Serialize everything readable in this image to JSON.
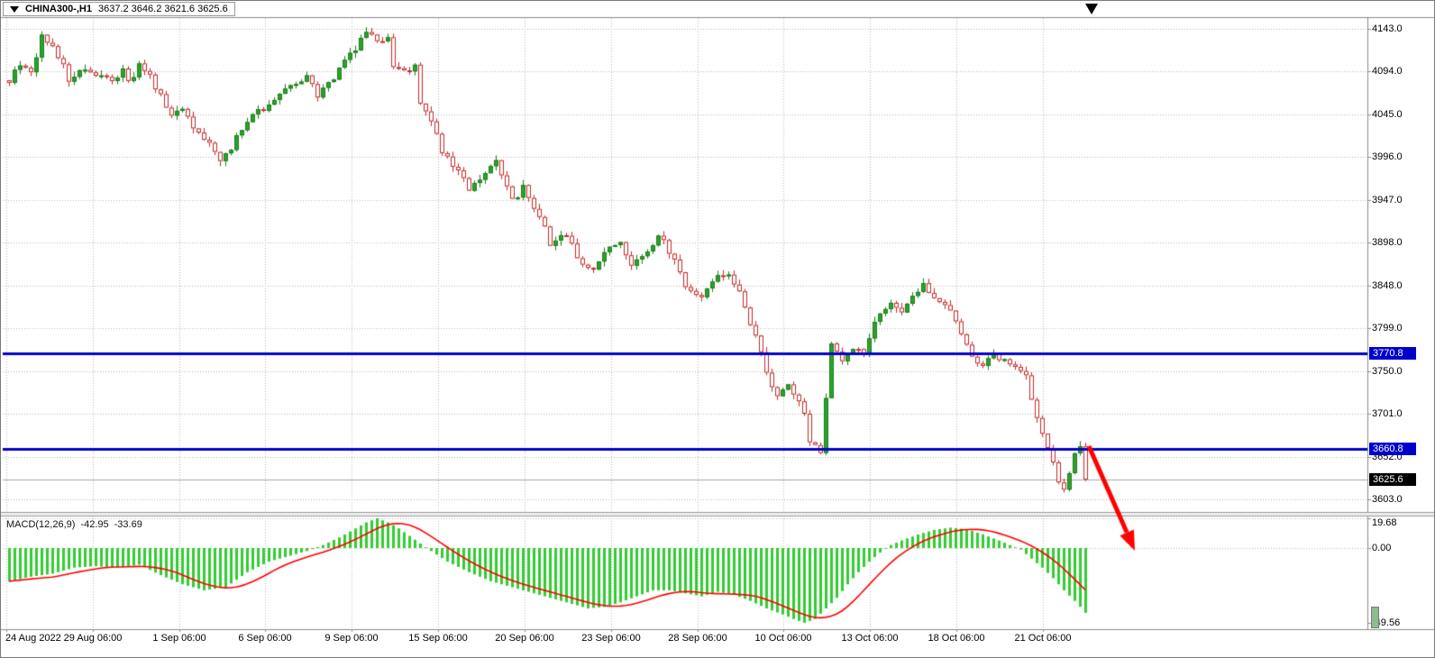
{
  "window": {
    "symbol": "CHINA300-,H1",
    "ohlc_text": "3637.2 3646.2 3621.6 3625.6"
  },
  "price_scale": {
    "labels": [
      "4143.0",
      "4094.0",
      "4045.0",
      "3996.0",
      "3947.0",
      "3898.0",
      "3848.0",
      "3799.0",
      "3750.0",
      "3701.0",
      "3652.0",
      "3603.0"
    ]
  },
  "time_scale": {
    "labels": [
      "24 Aug 2022",
      "29 Aug 06:00",
      "1 Sep 06:00",
      "6 Sep 06:00",
      "9 Sep 06:00",
      "15 Sep 06:00",
      "20 Sep 06:00",
      "23 Sep 06:00",
      "28 Sep 06:00",
      "10 Oct 06:00",
      "13 Oct 06:00",
      "18 Oct 06:00",
      "21 Oct 06:00"
    ]
  },
  "tags": {
    "resistance": "3770.8",
    "support": "3660.8",
    "last": "3625.6"
  },
  "macd_panel": {
    "name": "MACD(12,26,9)",
    "macd_value": "-42.95",
    "signal_value": "-33.69",
    "scale_labels": [
      "19.68",
      "0.00",
      "-49.56"
    ]
  },
  "colors": {
    "bull_fill": "#2ca32c",
    "bull_stroke": "#1b7e1b",
    "bear_fill": "#ffffff",
    "bear_stroke": "#c62828",
    "grid": "#b8b8b8",
    "hline": "#0202cc",
    "tag_blue": "#0000cd",
    "tag_black": "#000000",
    "macd_hist": "#32cd32",
    "macd_signal": "#ff0000",
    "arrow": "#ff0000",
    "bid_line": "#a8a8a8"
  },
  "chart_data": {
    "type": "candlestick",
    "symbol": "CHINA300-",
    "timeframe": "H1",
    "title": "CHINA300-,H1",
    "last_ohlc": {
      "open": 3637.2,
      "high": 3646.2,
      "low": 3621.6,
      "close": 3625.6
    },
    "price_axis": {
      "min": 3603.0,
      "max": 4143.0,
      "gridlines": [
        4143.0,
        4094.0,
        4045.0,
        3996.0,
        3947.0,
        3898.0,
        3848.0,
        3799.0,
        3750.0,
        3701.0,
        3652.0,
        3603.0
      ]
    },
    "horizontal_lines": [
      3770.8,
      3660.8
    ],
    "n_candles": 200,
    "noise_seed": 11,
    "noise_amp": 4,
    "wick_amp": 6,
    "close_anchors": [
      [
        0,
        4085
      ],
      [
        2,
        4100
      ],
      [
        4,
        4092
      ],
      [
        6,
        4135
      ],
      [
        7,
        4128
      ],
      [
        9,
        4112
      ],
      [
        11,
        4085
      ],
      [
        14,
        4096
      ],
      [
        16,
        4088
      ],
      [
        19,
        4082
      ],
      [
        21,
        4096
      ],
      [
        22,
        4080
      ],
      [
        24,
        4100
      ],
      [
        26,
        4088
      ],
      [
        27,
        4074
      ],
      [
        30,
        4045
      ],
      [
        32,
        4052
      ],
      [
        34,
        4030
      ],
      [
        36,
        4015
      ],
      [
        39,
        3995
      ],
      [
        41,
        4002
      ],
      [
        42,
        4020
      ],
      [
        45,
        4045
      ],
      [
        47,
        4052
      ],
      [
        50,
        4065
      ],
      [
        52,
        4076
      ],
      [
        55,
        4090
      ],
      [
        57,
        4064
      ],
      [
        60,
        4086
      ],
      [
        62,
        4106
      ],
      [
        65,
        4130
      ],
      [
        66,
        4140
      ],
      [
        68,
        4126
      ],
      [
        70,
        4133
      ],
      [
        71,
        4102
      ],
      [
        73,
        4096
      ],
      [
        75,
        4100
      ],
      [
        76,
        4060
      ],
      [
        78,
        4040
      ],
      [
        80,
        4000
      ],
      [
        83,
        3980
      ],
      [
        85,
        3958
      ],
      [
        88,
        3976
      ],
      [
        90,
        3990
      ],
      [
        93,
        3944
      ],
      [
        95,
        3960
      ],
      [
        98,
        3930
      ],
      [
        100,
        3895
      ],
      [
        103,
        3906
      ],
      [
        105,
        3880
      ],
      [
        108,
        3868
      ],
      [
        110,
        3890
      ],
      [
        113,
        3900
      ],
      [
        115,
        3870
      ],
      [
        118,
        3886
      ],
      [
        120,
        3906
      ],
      [
        123,
        3880
      ],
      [
        125,
        3850
      ],
      [
        128,
        3834
      ],
      [
        130,
        3856
      ],
      [
        133,
        3860
      ],
      [
        135,
        3840
      ],
      [
        138,
        3790
      ],
      [
        140,
        3750
      ],
      [
        142,
        3720
      ],
      [
        144,
        3736
      ],
      [
        147,
        3704
      ],
      [
        148,
        3670
      ],
      [
        150,
        3660
      ],
      [
        152,
        3780
      ],
      [
        154,
        3760
      ],
      [
        156,
        3776
      ],
      [
        158,
        3768
      ],
      [
        160,
        3810
      ],
      [
        163,
        3826
      ],
      [
        165,
        3815
      ],
      [
        167,
        3836
      ],
      [
        169,
        3850
      ],
      [
        172,
        3830
      ],
      [
        174,
        3816
      ],
      [
        176,
        3795
      ],
      [
        178,
        3764
      ],
      [
        180,
        3754
      ],
      [
        182,
        3772
      ],
      [
        184,
        3760
      ],
      [
        186,
        3756
      ],
      [
        188,
        3744
      ],
      [
        190,
        3694
      ],
      [
        192,
        3660
      ],
      [
        194,
        3624
      ],
      [
        195,
        3612
      ],
      [
        197,
        3656
      ],
      [
        198,
        3660
      ],
      [
        199,
        3625.6
      ]
    ],
    "indicator": {
      "type": "MACD",
      "fast": 12,
      "slow": 26,
      "signal_period": 9,
      "scale": {
        "max": 19.68,
        "zero": 0.0,
        "min": -49.56
      },
      "current": {
        "macd": -42.95,
        "signal": -33.69
      },
      "macd_anchors": [
        [
          0,
          -22
        ],
        [
          4,
          -19
        ],
        [
          8,
          -17
        ],
        [
          12,
          -13
        ],
        [
          16,
          -12
        ],
        [
          20,
          -13
        ],
        [
          24,
          -11
        ],
        [
          28,
          -18
        ],
        [
          32,
          -24
        ],
        [
          36,
          -28
        ],
        [
          40,
          -26
        ],
        [
          44,
          -16
        ],
        [
          48,
          -9
        ],
        [
          52,
          -5
        ],
        [
          55,
          -2
        ],
        [
          58,
          2
        ],
        [
          61,
          7
        ],
        [
          64,
          13
        ],
        [
          66,
          17
        ],
        [
          68,
          19.68
        ],
        [
          70,
          17
        ],
        [
          72,
          13
        ],
        [
          74,
          8
        ],
        [
          76,
          3
        ],
        [
          78,
          -2
        ],
        [
          81,
          -9
        ],
        [
          85,
          -16
        ],
        [
          89,
          -22
        ],
        [
          93,
          -26
        ],
        [
          97,
          -30
        ],
        [
          100,
          -33
        ],
        [
          104,
          -37
        ],
        [
          107,
          -40
        ],
        [
          110,
          -39
        ],
        [
          113,
          -36
        ],
        [
          116,
          -32
        ],
        [
          119,
          -28
        ],
        [
          122,
          -28
        ],
        [
          125,
          -30
        ],
        [
          128,
          -32
        ],
        [
          131,
          -29
        ],
        [
          134,
          -31
        ],
        [
          137,
          -35
        ],
        [
          140,
          -40
        ],
        [
          143,
          -44
        ],
        [
          145,
          -47
        ],
        [
          147,
          -49.56
        ],
        [
          149,
          -47
        ],
        [
          151,
          -40
        ],
        [
          153,
          -33
        ],
        [
          155,
          -24
        ],
        [
          157,
          -16
        ],
        [
          159,
          -9
        ],
        [
          161,
          -3
        ],
        [
          163,
          2
        ],
        [
          165,
          5
        ],
        [
          168,
          9
        ],
        [
          171,
          12
        ],
        [
          174,
          13.5
        ],
        [
          177,
          12.5
        ],
        [
          180,
          9
        ],
        [
          183,
          5
        ],
        [
          185,
          2
        ],
        [
          187,
          -1
        ],
        [
          189,
          -7
        ],
        [
          191,
          -13
        ],
        [
          193,
          -20
        ],
        [
          195,
          -28
        ],
        [
          197,
          -35
        ],
        [
          199,
          -42.95
        ]
      ]
    },
    "annotations": [
      {
        "type": "arrow",
        "color": "#ff0000",
        "from": [
          1207,
          494
        ],
        "to": [
          1258,
          610
        ]
      }
    ]
  }
}
